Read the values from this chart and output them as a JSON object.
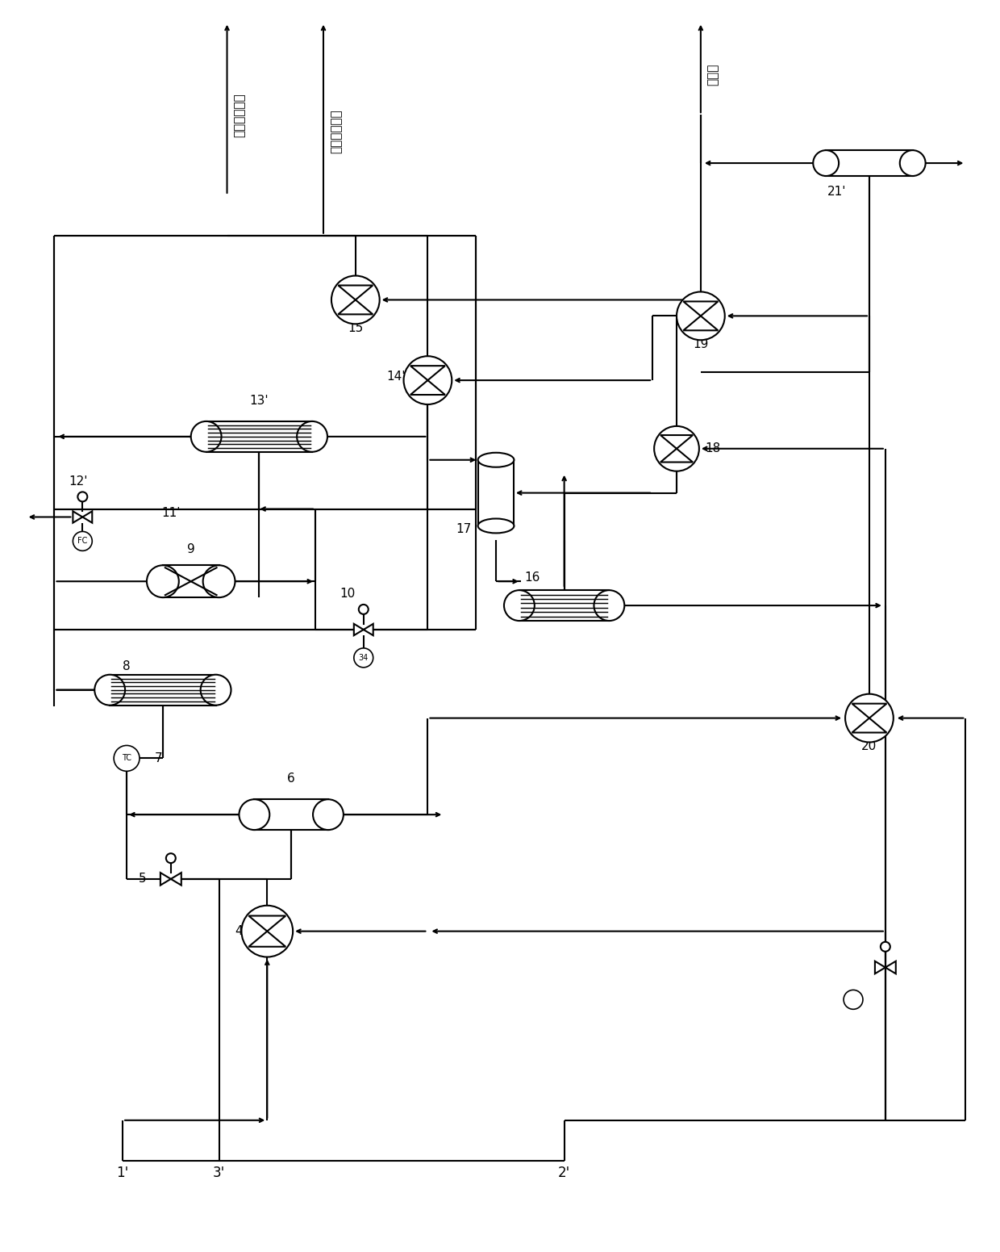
{
  "bg_color": "#ffffff",
  "line_color": "#000000",
  "fig_width": 12.4,
  "fig_height": 15.51,
  "labels": {
    "top_left1": "中压过热蒸汽",
    "top_left2": "低压过热蒸汽",
    "top_right": "合成气"
  },
  "font": "SimHei"
}
